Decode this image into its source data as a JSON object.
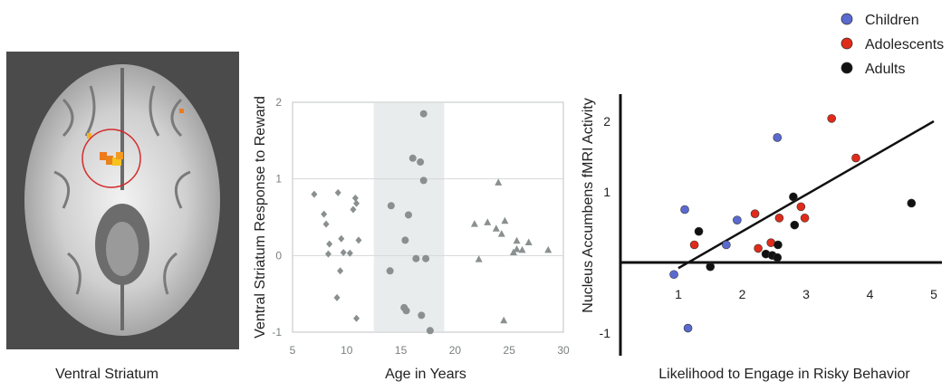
{
  "brain_panel": {
    "caption": "Ventral Striatum"
  },
  "chart_data": [
    {
      "type": "scatter",
      "title": "",
      "xlabel": "Age in Years",
      "ylabel": "Ventral Striatum Response to Reward",
      "xlim": [
        5,
        30
      ],
      "ylim": [
        -1,
        2
      ],
      "xticks": [
        "5",
        "10",
        "15",
        "20",
        "25",
        "30"
      ],
      "yticks": [
        "-1",
        "0",
        "1",
        "2"
      ],
      "grid": "horizontal",
      "highlight_band": [
        12.5,
        19
      ],
      "colors": {
        "points": "#8a8f8f",
        "band": "#e9ecec",
        "grid": "#d6d8d8"
      },
      "series": [
        {
          "marker": "diamond",
          "x": [
            7.0,
            7.9,
            8.1,
            9.2,
            8.4,
            8.3,
            9.5,
            10.6,
            10.9,
            9.4,
            10.8,
            11.1,
            9.7,
            10.3,
            9.1,
            10.9
          ],
          "y": [
            0.8,
            0.54,
            0.41,
            0.82,
            0.15,
            0.02,
            0.22,
            0.6,
            0.68,
            -0.2,
            0.75,
            0.2,
            0.04,
            0.03,
            -0.55,
            -0.82
          ]
        },
        {
          "marker": "circle",
          "x": [
            17.1,
            16.1,
            16.8,
            17.1,
            14.1,
            15.7,
            15.4,
            14.0,
            16.4,
            17.3,
            15.3,
            16.9,
            17.7,
            15.5
          ],
          "y": [
            1.85,
            1.27,
            1.22,
            0.98,
            0.65,
            0.53,
            0.2,
            -0.2,
            -0.04,
            -0.04,
            -0.68,
            -0.78,
            -0.98,
            -0.72
          ]
        },
        {
          "marker": "triangle",
          "x": [
            24.0,
            21.8,
            23.0,
            24.6,
            23.8,
            24.3,
            25.7,
            26.8,
            25.7,
            26.2,
            28.6,
            25.4,
            22.2,
            24.5
          ],
          "y": [
            0.95,
            0.41,
            0.43,
            0.45,
            0.35,
            0.28,
            0.19,
            0.17,
            0.08,
            0.07,
            0.07,
            0.04,
            -0.05,
            -0.85
          ]
        }
      ]
    },
    {
      "type": "scatter",
      "title": "",
      "xlabel": "Likelihood to Engage in Risky Behavior",
      "ylabel": "Nucleus Accumbens fMRI Activity",
      "xlim": [
        0.6,
        5.2
      ],
      "ylim": [
        -1.2,
        2.4
      ],
      "xticks": [
        "1",
        "2",
        "3",
        "4",
        "5"
      ],
      "yticks": [
        "2",
        "1",
        "-1"
      ],
      "legend_position": "top-right",
      "trendline": {
        "x": [
          1.0,
          5.0
        ],
        "y": [
          -0.08,
          2.0
        ]
      },
      "series": [
        {
          "name": "Children",
          "color": "#5a6ad0",
          "x": [
            0.93,
            1.1,
            1.15,
            1.75,
            1.92,
            2.55
          ],
          "y": [
            -0.17,
            0.75,
            -0.93,
            0.25,
            0.6,
            1.77
          ]
        },
        {
          "name": "Adolescents",
          "color": "#e02a1a",
          "x": [
            1.25,
            2.2,
            2.25,
            2.45,
            2.58,
            2.92,
            2.98,
            3.4,
            3.78
          ],
          "y": [
            0.25,
            0.69,
            0.2,
            0.28,
            0.63,
            0.79,
            0.63,
            2.04,
            1.48
          ]
        },
        {
          "name": "Adults",
          "color": "#111111",
          "x": [
            1.32,
            1.5,
            2.37,
            2.47,
            2.55,
            2.56,
            2.8,
            2.82,
            4.65
          ],
          "y": [
            0.44,
            -0.06,
            0.12,
            0.1,
            0.07,
            0.25,
            0.93,
            0.53,
            0.84
          ]
        }
      ]
    }
  ]
}
